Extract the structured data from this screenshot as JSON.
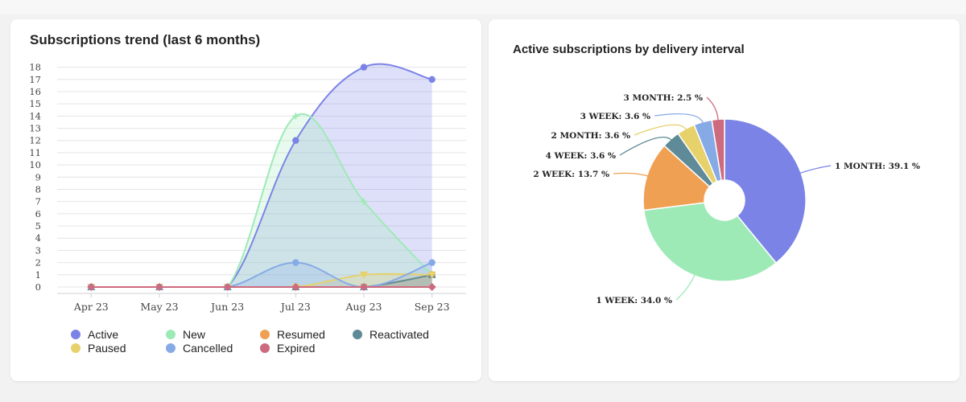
{
  "left_card": {
    "title": "Subscriptions trend (last 6 months)"
  },
  "right_card": {
    "title": "Active subscriptions by delivery interval"
  },
  "chart_data": [
    {
      "type": "area",
      "title": "Subscriptions trend (last 6 months)",
      "categories": [
        "Apr 23",
        "May 23",
        "Jun 23",
        "Jul 23",
        "Aug 23",
        "Sep 23"
      ],
      "yticks": [
        0,
        1,
        2,
        3,
        4,
        5,
        6,
        7,
        8,
        9,
        10,
        11,
        12,
        13,
        14,
        15,
        16,
        17,
        18
      ],
      "ylim": [
        0,
        18.5
      ],
      "grid": true,
      "legend_position": "bottom",
      "series": [
        {
          "name": "Active",
          "color": "#7b84e6",
          "marker": "circle",
          "values": [
            0,
            0,
            0,
            12,
            18,
            17
          ]
        },
        {
          "name": "New",
          "color": "#9eeab7",
          "marker": "cross",
          "values": [
            0,
            0,
            0,
            14,
            7,
            1
          ]
        },
        {
          "name": "Resumed",
          "color": "#f0a052",
          "marker": "square",
          "values": [
            0,
            0,
            0,
            0,
            0,
            1
          ]
        },
        {
          "name": "Reactivated",
          "color": "#5e8b97",
          "marker": "triangle",
          "values": [
            0,
            0,
            0,
            0,
            0,
            1
          ]
        },
        {
          "name": "Paused",
          "color": "#e6d16b",
          "marker": "triangle-down",
          "values": [
            0,
            0,
            0,
            0,
            1,
            1
          ]
        },
        {
          "name": "Cancelled",
          "color": "#86aae6",
          "marker": "circle",
          "values": [
            0,
            0,
            0,
            2,
            0,
            2
          ]
        },
        {
          "name": "Expired",
          "color": "#cd6a7d",
          "marker": "diamond",
          "values": [
            0,
            0,
            0,
            0,
            0,
            0
          ]
        }
      ]
    },
    {
      "type": "pie",
      "title": "Active subscriptions by delivery interval",
      "slices": [
        {
          "label": "1 MONTH: 39.1 %",
          "value": 39.1,
          "color": "#7b84e6"
        },
        {
          "label": "1 WEEK: 34.0 %",
          "value": 34.0,
          "color": "#9eeab7"
        },
        {
          "label": "2 WEEK: 13.7 %",
          "value": 13.7,
          "color": "#f0a052"
        },
        {
          "label": "4 WEEK: 3.6 %",
          "value": 3.6,
          "color": "#5e8b97"
        },
        {
          "label": "2 MONTH: 3.6 %",
          "value": 3.6,
          "color": "#e6d16b"
        },
        {
          "label": "3 WEEK: 3.6 %",
          "value": 3.6,
          "color": "#86aae6"
        },
        {
          "label": "3 MONTH: 2.5 %",
          "value": 2.5,
          "color": "#cd6a7d"
        }
      ]
    }
  ]
}
